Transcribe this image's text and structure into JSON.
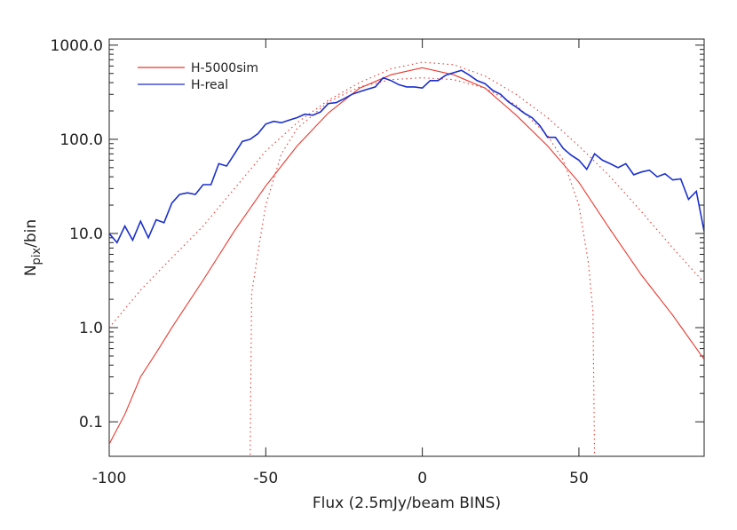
{
  "chart_data": {
    "type": "line",
    "xlabel": "Flux (2.5mJy/beam BINS)",
    "ylabel": [
      "N",
      "pix",
      "/bin"
    ],
    "log_y": true,
    "legend": "upper left",
    "xlim": [
      -100,
      90
    ],
    "ylim": [
      0.043,
      1160
    ],
    "xticks": [
      -100,
      -50,
      0,
      50
    ],
    "yticks": [
      0.1,
      {
        "value": 1,
        "label": "1.0"
      },
      {
        "value": 10,
        "label": "10.0"
      },
      {
        "value": 100,
        "label": "100.0"
      },
      {
        "value": 1000,
        "label": "1000.0"
      }
    ],
    "series": [
      {
        "name": "H-5000sim",
        "color": "#e8382e",
        "dash": "solid",
        "x": [
          -100,
          -95,
          -90,
          -85,
          -80,
          -70,
          -60,
          -50,
          -40,
          -30,
          -20,
          -10,
          0,
          10,
          20,
          30,
          40,
          50,
          60,
          70,
          80,
          90
        ],
        "values": [
          0.058,
          0.12,
          0.3,
          0.54,
          1.0,
          3.2,
          10.7,
          32,
          85,
          190,
          350,
          485,
          575,
          485,
          350,
          180,
          85,
          35,
          11,
          3.6,
          1.35,
          0.46
        ]
      },
      {
        "color": "#e8382e",
        "dash": "dotted",
        "x": [
          -100,
          -90,
          -80,
          -70,
          -60,
          -50,
          -40,
          -30,
          -20,
          -10,
          0,
          10,
          20,
          30,
          40,
          50,
          60,
          70,
          80,
          90
        ],
        "values": [
          1.0,
          2.5,
          5.5,
          12,
          30,
          75,
          150,
          260,
          400,
          560,
          660,
          620,
          470,
          300,
          170,
          85,
          40,
          17,
          7,
          3
        ]
      },
      {
        "color": "#e8382e",
        "dash": "dotted",
        "x": [
          -55,
          -54.5,
          -52,
          -50,
          -45,
          -40,
          -30,
          -20,
          -10,
          0,
          10,
          20,
          30,
          40,
          45,
          50,
          53,
          54.5,
          55
        ],
        "values": [
          0.04,
          2.3,
          8,
          20,
          70,
          130,
          250,
          360,
          430,
          450,
          430,
          350,
          230,
          110,
          60,
          20,
          5,
          1.5,
          0.04
        ]
      },
      {
        "name": "H-real",
        "color": "#1a2fcc",
        "dash": "solid",
        "x": [
          -100,
          -97.5,
          -95,
          -92.5,
          -90,
          -87.5,
          -85,
          -82.5,
          -80,
          -77.5,
          -75,
          -72.5,
          -70,
          -67.5,
          -65,
          -62.5,
          -60,
          -57.5,
          -55,
          -52.5,
          -50,
          -47.5,
          -45,
          -42.5,
          -40,
          -37.5,
          -35,
          -32.5,
          -30,
          -27.5,
          -25,
          -22.5,
          -20,
          -17.5,
          -15,
          -12.5,
          -10,
          -7.5,
          -5,
          -2.5,
          0,
          2.5,
          5,
          7.5,
          10,
          12.5,
          15,
          17.5,
          20,
          22.5,
          25,
          27.5,
          30,
          32.5,
          35,
          37.5,
          40,
          42.5,
          45,
          47.5,
          50,
          52.5,
          55,
          57.5,
          60,
          62.5,
          65,
          67.5,
          70,
          72.5,
          75,
          77.5,
          80,
          82.5,
          85,
          87.5,
          90
        ],
        "values": [
          10,
          8,
          12,
          8.5,
          13.5,
          9,
          14,
          13,
          21,
          26,
          27,
          26,
          33,
          33,
          55,
          52,
          70,
          95,
          100,
          115,
          145,
          155,
          150,
          160,
          170,
          185,
          180,
          195,
          240,
          245,
          270,
          300,
          320,
          340,
          360,
          450,
          420,
          380,
          360,
          360,
          350,
          420,
          420,
          480,
          510,
          540,
          480,
          420,
          390,
          330,
          300,
          250,
          220,
          190,
          170,
          140,
          105,
          105,
          80,
          68,
          60,
          48,
          70,
          60,
          55,
          50,
          55,
          42,
          45,
          47,
          40,
          43,
          37,
          38,
          23,
          28,
          10.5
        ]
      }
    ]
  }
}
